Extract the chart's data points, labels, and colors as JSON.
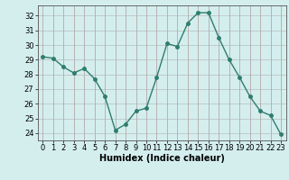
{
  "x": [
    0,
    1,
    2,
    3,
    4,
    5,
    6,
    7,
    8,
    9,
    10,
    11,
    12,
    13,
    14,
    15,
    16,
    17,
    18,
    19,
    20,
    21,
    22,
    23
  ],
  "y": [
    29.2,
    29.1,
    28.5,
    28.1,
    28.4,
    27.7,
    26.5,
    24.2,
    24.6,
    25.5,
    25.7,
    27.8,
    30.1,
    29.9,
    31.5,
    32.2,
    32.2,
    30.5,
    29.0,
    27.8,
    26.5,
    25.5,
    25.2,
    23.9
  ],
  "line_color": "#2e7d6e",
  "bg_color": "#d4eeee",
  "grid_color": "#b0b0b0",
  "grid_color_major": "#c08080",
  "xlabel": "Humidex (Indice chaleur)",
  "ylim": [
    23.5,
    32.7
  ],
  "xlim": [
    -0.5,
    23.5
  ],
  "yticks": [
    24,
    25,
    26,
    27,
    28,
    29,
    30,
    31,
    32
  ],
  "xticks": [
    0,
    1,
    2,
    3,
    4,
    5,
    6,
    7,
    8,
    9,
    10,
    11,
    12,
    13,
    14,
    15,
    16,
    17,
    18,
    19,
    20,
    21,
    22,
    23
  ],
  "marker": "o",
  "markersize": 2.5,
  "linewidth": 1.0,
  "label_fontsize": 7,
  "tick_fontsize": 6
}
